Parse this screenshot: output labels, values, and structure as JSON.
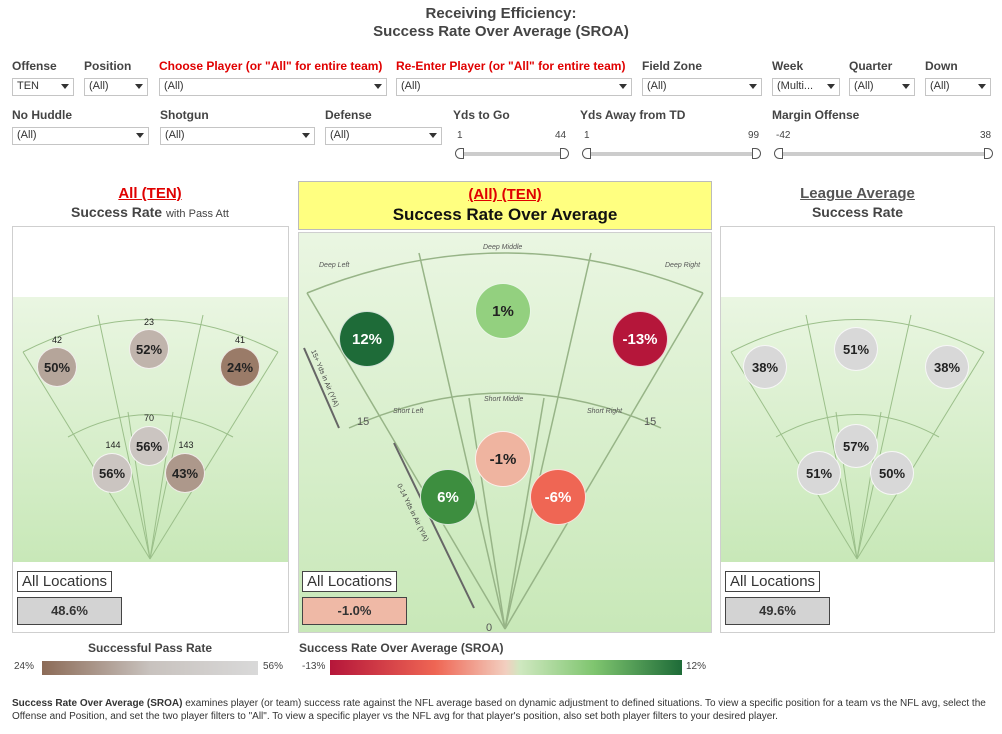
{
  "title": {
    "line1": "Receiving Efficiency:",
    "line2": "Success Rate Over Average (SROA)"
  },
  "filters_row1": [
    {
      "label": "Offense",
      "value": "TEN",
      "red": false
    },
    {
      "label": "Position",
      "value": "(All)",
      "red": false
    },
    {
      "label": "Choose Player (or \"All\" for entire team)",
      "value": "(All)",
      "red": true
    },
    {
      "label": "Re-Enter Player (or \"All\" for entire team)",
      "value": "(All)",
      "red": true
    },
    {
      "label": "Field Zone",
      "value": "(All)",
      "red": false
    },
    {
      "label": "Week",
      "value": "(Multi...",
      "red": false
    },
    {
      "label": "Quarter",
      "value": "(All)",
      "red": false
    },
    {
      "label": "Down",
      "value": "(All)",
      "red": false
    }
  ],
  "filters_row2": [
    {
      "label": "No Huddle",
      "value": "(All)"
    },
    {
      "label": "Shotgun",
      "value": "(All)"
    },
    {
      "label": "Defense",
      "value": "(All)"
    }
  ],
  "sliders": [
    {
      "label": "Yds to Go",
      "min": "1",
      "max": "44"
    },
    {
      "label": "Yds Away from TD",
      "min": "1",
      "max": "99"
    },
    {
      "label": "Margin Offense",
      "min": "-42",
      "max": "38"
    }
  ],
  "left_panel": {
    "heading": "All (TEN)",
    "subtitle": "Success Rate",
    "subtitle_small": "with Pass Att",
    "zones": [
      {
        "label": "50%",
        "count": "42",
        "color": "#b5a59a"
      },
      {
        "label": "52%",
        "count": "23",
        "color": "#c0b4ac"
      },
      {
        "label": "24%",
        "count": "41",
        "color": "#9a7b68"
      },
      {
        "label": "56%",
        "count": "70",
        "color": "#cbc5c1"
      },
      {
        "label": "56%",
        "count": "144",
        "color": "#cbc5c1"
      },
      {
        "label": "43%",
        "count": "143",
        "color": "#ad988b"
      }
    ],
    "all_locations": "All Locations",
    "all_value": "48.6%"
  },
  "center_panel": {
    "heading": "(All) (TEN)",
    "subtitle": "Success Rate Over Average",
    "zones": [
      {
        "label": "12%",
        "color": "#1e6b38",
        "text_color": "#ffffff"
      },
      {
        "label": "1%",
        "color": "#93d07f",
        "text_color": "#222222"
      },
      {
        "label": "-13%",
        "color": "#b5163a",
        "text_color": "#ffffff"
      },
      {
        "label": "-1%",
        "color": "#efb4a0",
        "text_color": "#222222"
      },
      {
        "label": "6%",
        "color": "#3d8e3f",
        "text_color": "#ffffff"
      },
      {
        "label": "-6%",
        "color": "#ef6654",
        "text_color": "#ffffff"
      }
    ],
    "field_labels": {
      "deep_left": "Deep Left",
      "deep_middle": "Deep Middle",
      "deep_right": "Deep Right",
      "short_left": "Short Left",
      "short_middle": "Short Middle",
      "short_right": "Short Right",
      "yard_15_left": "15",
      "yard_15_right": "15",
      "zero": "0",
      "deep_axis": "15+ Yds in Air (YIA)",
      "short_axis": "0-14 Yds in Air (YIA)"
    },
    "all_locations": "All Locations",
    "all_value": "-1.0%"
  },
  "right_panel": {
    "heading": "League Average",
    "subtitle": "Success Rate",
    "zones": [
      {
        "label": "38%",
        "color": "#d8d8d8"
      },
      {
        "label": "51%",
        "color": "#d8d8d8"
      },
      {
        "label": "38%",
        "color": "#d8d8d8"
      },
      {
        "label": "57%",
        "color": "#d8d8d8"
      },
      {
        "label": "51%",
        "color": "#d8d8d8"
      },
      {
        "label": "50%",
        "color": "#d8d8d8"
      }
    ],
    "all_locations": "All Locations",
    "all_value": "49.6%"
  },
  "legend_left": {
    "title": "Successful Pass Rate",
    "min": "24%",
    "max": "56%"
  },
  "legend_center": {
    "title": "Success Rate Over Average (SROA)",
    "min": "-13%",
    "max": "12%"
  },
  "footer": {
    "bold": "Success Rate Over Average (SROA)",
    "text": " examines player (or team) success rate against the NFL average based on dynamic adjustment to defined situations. To view a specific position for a team vs the NFL avg, select the Offense and Position, and set the two player filters to \"All\". To view a specific player vs the NFL avg for that player's position, also set both player filters to your desired player."
  },
  "colors": {
    "accent_red": "#e00000",
    "highlight_yellow": "#ffff80",
    "center_box": "#efb9a6"
  }
}
